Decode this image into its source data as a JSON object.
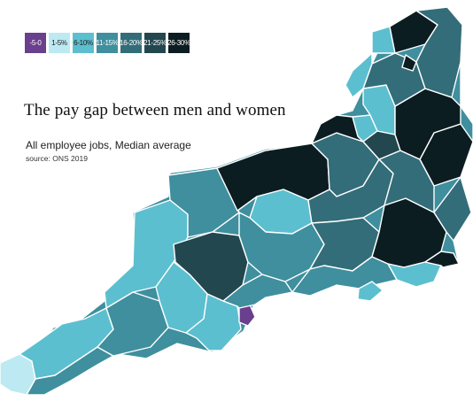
{
  "title": "The pay gap between men and women",
  "subtitle": "All employee jobs, Median average",
  "source": "source: ONS 2019",
  "legend": [
    {
      "label": "-5-0",
      "color": "#6a3f8e",
      "text_color": "#ffffff"
    },
    {
      "label": "1-5%",
      "color": "#bdeaf2",
      "text_color": "#1a1a1a"
    },
    {
      "label": "6-10%",
      "color": "#5cbfcf",
      "text_color": "#1a1a1a"
    },
    {
      "label": "11-15%",
      "color": "#3f8f9e",
      "text_color": "#ffffff"
    },
    {
      "label": "16-20%",
      "color": "#336d79",
      "text_color": "#ffffff"
    },
    {
      "label": "21-25%",
      "color": "#23474f",
      "text_color": "#ffffff"
    },
    {
      "label": "26-30%",
      "color": "#0c1d22",
      "text_color": "#ffffff"
    }
  ]
}
